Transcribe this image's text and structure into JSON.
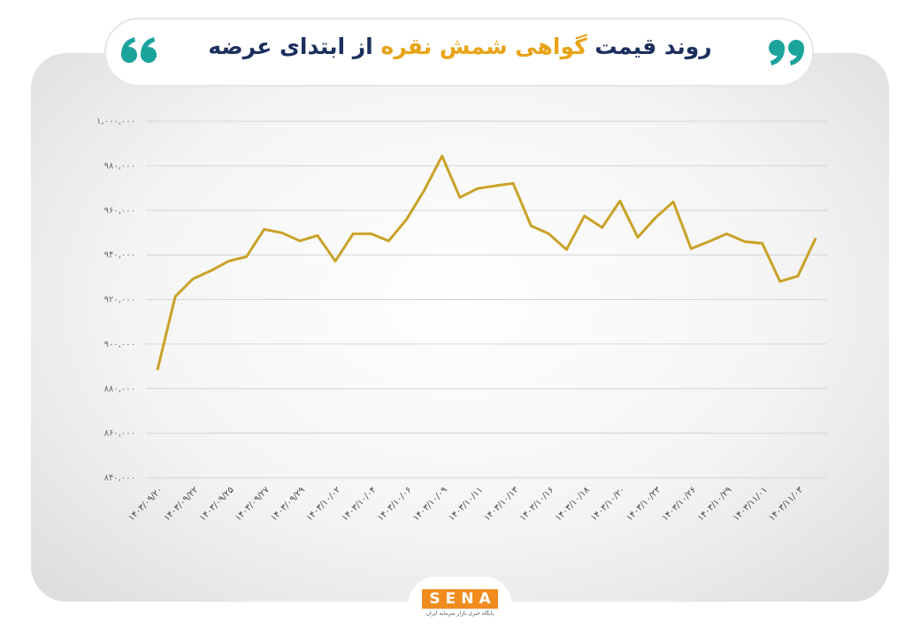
{
  "chart_data": {
    "type": "line",
    "title_parts": [
      "روند قیمت",
      "گواهی شمش نقره",
      "از ابتدای عرضه"
    ],
    "categories": [
      "۱۴۰۳/۰۹/۲۰",
      null,
      "۱۴۰۳/۰۹/۲۲",
      null,
      "۱۴۰۳/۰۹/۲۵",
      null,
      "۱۴۰۳/۰۹/۲۷",
      null,
      "۱۴۰۳/۰۹/۲۹",
      null,
      "۱۴۰۳/۱۰/۰۲",
      null,
      "۱۴۰۳/۱۰/۰۴",
      null,
      "۱۴۰۳/۱۰/۰۶",
      null,
      "۱۴۰۳/۱۰/۰۹",
      null,
      "۱۴۰۳/۱۰/۱۱",
      null,
      "۱۴۰۳/۱۰/۱۳",
      null,
      "۱۴۰۳/۱۰/۱۶",
      null,
      "۱۴۰۳/۱۰/۱۸",
      null,
      "۱۴۰۳/۱۰/۲۰",
      null,
      "۱۴۰۳/۱۰/۲۳",
      null,
      "۱۴۰۳/۱۰/۲۶",
      null,
      "۱۴۰۳/۱۰/۲۹",
      null,
      "۱۴۰۳/۱۱/۰۱",
      null,
      "۱۴۰۳/۱۱/۰۳",
      null
    ],
    "values": [
      888400,
      921300,
      929300,
      932900,
      937200,
      939200,
      951500,
      949900,
      946300,
      948700,
      937200,
      949500,
      949500,
      946300,
      955900,
      969000,
      984400,
      965800,
      969800,
      971000,
      972100,
      953100,
      949500,
      942400,
      957500,
      952300,
      964200,
      947900,
      956700,
      963800,
      942800,
      946000,
      949500,
      946000,
      945200,
      928100,
      930500,
      947500
    ],
    "color": "#c9a227",
    "ylim": [
      840000,
      1000000
    ],
    "yticks": [
      {
        "value": 840000,
        "label": "۸۴۰,۰۰۰"
      },
      {
        "value": 860000,
        "label": "۸۶۰,۰۰۰"
      },
      {
        "value": 880000,
        "label": "۸۸۰,۰۰۰"
      },
      {
        "value": 900000,
        "label": "۹۰۰,۰۰۰"
      },
      {
        "value": 920000,
        "label": "۹۲۰,۰۰۰"
      },
      {
        "value": 940000,
        "label": "۹۴۰,۰۰۰"
      },
      {
        "value": 960000,
        "label": "۹۶۰,۰۰۰"
      },
      {
        "value": 980000,
        "label": "۹۸۰,۰۰۰"
      },
      {
        "value": 1000000,
        "label": "۱,۰۰۰,۰۰۰"
      }
    ],
    "grid": true
  },
  "logo": {
    "name": "SENA",
    "tagline": "پایگاه خبری بازار سرمایه ایران"
  }
}
